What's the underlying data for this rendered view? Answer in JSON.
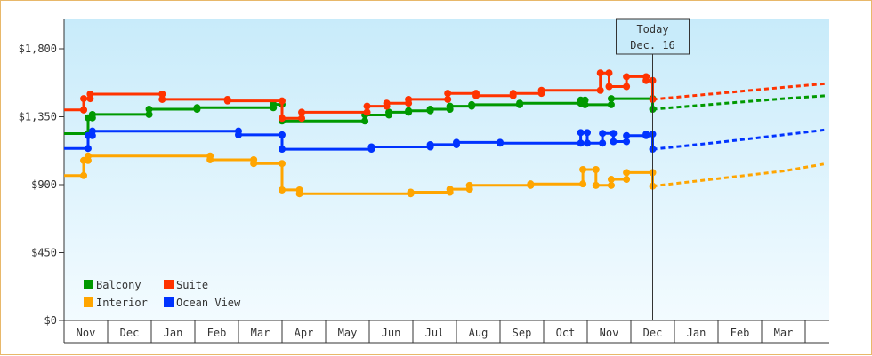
{
  "chart_data": {
    "type": "line",
    "title": "",
    "xlabel": "",
    "ylabel": "",
    "ylim": [
      0,
      2000
    ],
    "y_ticks": [
      "$0",
      "$450",
      "$900",
      "$1,350",
      "$1,800"
    ],
    "y_tick_values": [
      0,
      450,
      900,
      1350,
      1800
    ],
    "x_months": [
      "Nov",
      "Dec",
      "Jan",
      "Feb",
      "Mar",
      "Apr",
      "May",
      "Jun",
      "Jul",
      "Aug",
      "Sep",
      "Oct",
      "Nov",
      "Dec",
      "Jan",
      "Feb",
      "Mar"
    ],
    "marker": {
      "label": "Today",
      "date": "Dec. 16"
    },
    "legend_placement": "bottom-left",
    "grid": false,
    "series": [
      {
        "name": "Balcony",
        "color": "#009900",
        "history": [
          [
            0.0,
            1238
          ],
          [
            0.55,
            1238
          ],
          [
            0.55,
            1343
          ],
          [
            0.65,
            1343
          ],
          [
            0.65,
            1365
          ],
          [
            1.95,
            1365
          ],
          [
            1.95,
            1400
          ],
          [
            3.05,
            1400
          ],
          [
            3.05,
            1410
          ],
          [
            4.8,
            1410
          ],
          [
            4.8,
            1432
          ],
          [
            5.0,
            1432
          ],
          [
            5.0,
            1322
          ],
          [
            6.9,
            1322
          ],
          [
            6.9,
            1362
          ],
          [
            7.45,
            1362
          ],
          [
            7.45,
            1380
          ],
          [
            7.9,
            1380
          ],
          [
            7.9,
            1390
          ],
          [
            8.4,
            1390
          ],
          [
            8.4,
            1400
          ],
          [
            8.85,
            1400
          ],
          [
            8.85,
            1420
          ],
          [
            9.35,
            1420
          ],
          [
            9.35,
            1430
          ],
          [
            10.45,
            1430
          ],
          [
            10.45,
            1440
          ],
          [
            11.85,
            1440
          ],
          [
            11.85,
            1460
          ],
          [
            11.95,
            1460
          ],
          [
            11.95,
            1430
          ],
          [
            12.55,
            1430
          ],
          [
            12.55,
            1470
          ],
          [
            13.5,
            1470
          ],
          [
            13.5,
            1400
          ]
        ],
        "forecast": [
          [
            13.5,
            1400
          ],
          [
            15.0,
            1435
          ],
          [
            16.5,
            1470
          ],
          [
            17.5,
            1490
          ]
        ]
      },
      {
        "name": "Suite",
        "color": "#ff3300",
        "history": [
          [
            0.0,
            1395
          ],
          [
            0.45,
            1395
          ],
          [
            0.45,
            1470
          ],
          [
            0.6,
            1470
          ],
          [
            0.6,
            1500
          ],
          [
            2.25,
            1500
          ],
          [
            2.25,
            1465
          ],
          [
            3.75,
            1465
          ],
          [
            3.75,
            1455
          ],
          [
            5.0,
            1455
          ],
          [
            5.0,
            1340
          ],
          [
            5.45,
            1340
          ],
          [
            5.45,
            1380
          ],
          [
            6.95,
            1380
          ],
          [
            6.95,
            1420
          ],
          [
            7.4,
            1420
          ],
          [
            7.4,
            1440
          ],
          [
            7.9,
            1440
          ],
          [
            7.9,
            1465
          ],
          [
            8.8,
            1465
          ],
          [
            8.8,
            1505
          ],
          [
            9.45,
            1505
          ],
          [
            9.45,
            1490
          ],
          [
            10.3,
            1490
          ],
          [
            10.3,
            1505
          ],
          [
            10.95,
            1505
          ],
          [
            10.95,
            1525
          ],
          [
            12.3,
            1525
          ],
          [
            12.3,
            1640
          ],
          [
            12.5,
            1640
          ],
          [
            12.5,
            1550
          ],
          [
            12.9,
            1550
          ],
          [
            12.9,
            1615
          ],
          [
            13.35,
            1615
          ],
          [
            13.35,
            1590
          ],
          [
            13.5,
            1590
          ],
          [
            13.5,
            1465
          ]
        ],
        "forecast": [
          [
            13.5,
            1465
          ],
          [
            15.0,
            1505
          ],
          [
            16.5,
            1545
          ],
          [
            17.5,
            1570
          ]
        ]
      },
      {
        "name": "Ocean View",
        "color": "#0033ff",
        "history": [
          [
            0.0,
            1140
          ],
          [
            0.55,
            1140
          ],
          [
            0.55,
            1225
          ],
          [
            0.65,
            1225
          ],
          [
            0.65,
            1255
          ],
          [
            4.0,
            1255
          ],
          [
            4.0,
            1230
          ],
          [
            5.0,
            1230
          ],
          [
            5.0,
            1135
          ],
          [
            7.05,
            1135
          ],
          [
            7.05,
            1150
          ],
          [
            8.4,
            1150
          ],
          [
            8.4,
            1165
          ],
          [
            9.0,
            1165
          ],
          [
            9.0,
            1180
          ],
          [
            10.0,
            1180
          ],
          [
            10.0,
            1175
          ],
          [
            11.85,
            1175
          ],
          [
            11.85,
            1245
          ],
          [
            12.0,
            1245
          ],
          [
            12.0,
            1175
          ],
          [
            12.35,
            1175
          ],
          [
            12.35,
            1240
          ],
          [
            12.6,
            1240
          ],
          [
            12.6,
            1185
          ],
          [
            12.9,
            1185
          ],
          [
            12.9,
            1225
          ],
          [
            13.35,
            1225
          ],
          [
            13.35,
            1235
          ],
          [
            13.5,
            1235
          ],
          [
            13.5,
            1135
          ]
        ],
        "forecast": [
          [
            13.5,
            1135
          ],
          [
            15.0,
            1180
          ],
          [
            16.5,
            1230
          ],
          [
            17.5,
            1265
          ]
        ]
      },
      {
        "name": "Interior",
        "color": "#ffa500",
        "history": [
          [
            0.0,
            960
          ],
          [
            0.45,
            960
          ],
          [
            0.45,
            1060
          ],
          [
            0.55,
            1060
          ],
          [
            0.55,
            1090
          ],
          [
            3.35,
            1090
          ],
          [
            3.35,
            1065
          ],
          [
            4.35,
            1065
          ],
          [
            4.35,
            1040
          ],
          [
            5.0,
            1040
          ],
          [
            5.0,
            865
          ],
          [
            5.4,
            865
          ],
          [
            5.4,
            840
          ],
          [
            7.95,
            840
          ],
          [
            7.95,
            850
          ],
          [
            8.85,
            850
          ],
          [
            8.85,
            870
          ],
          [
            9.3,
            870
          ],
          [
            9.3,
            895
          ],
          [
            10.7,
            895
          ],
          [
            10.7,
            905
          ],
          [
            11.9,
            905
          ],
          [
            11.9,
            1000
          ],
          [
            12.2,
            1000
          ],
          [
            12.2,
            895
          ],
          [
            12.55,
            895
          ],
          [
            12.55,
            935
          ],
          [
            12.9,
            935
          ],
          [
            12.9,
            980
          ],
          [
            13.5,
            980
          ],
          [
            13.5,
            890
          ]
        ],
        "forecast": [
          [
            13.5,
            890
          ],
          [
            15.0,
            940
          ],
          [
            16.5,
            990
          ],
          [
            17.5,
            1040
          ]
        ]
      }
    ]
  },
  "legend": [
    {
      "name": "Balcony",
      "color": "#009900"
    },
    {
      "name": "Suite",
      "color": "#ff3300"
    },
    {
      "name": "Interior",
      "color": "#ffa500"
    },
    {
      "name": "Ocean View",
      "color": "#0033ff"
    }
  ]
}
